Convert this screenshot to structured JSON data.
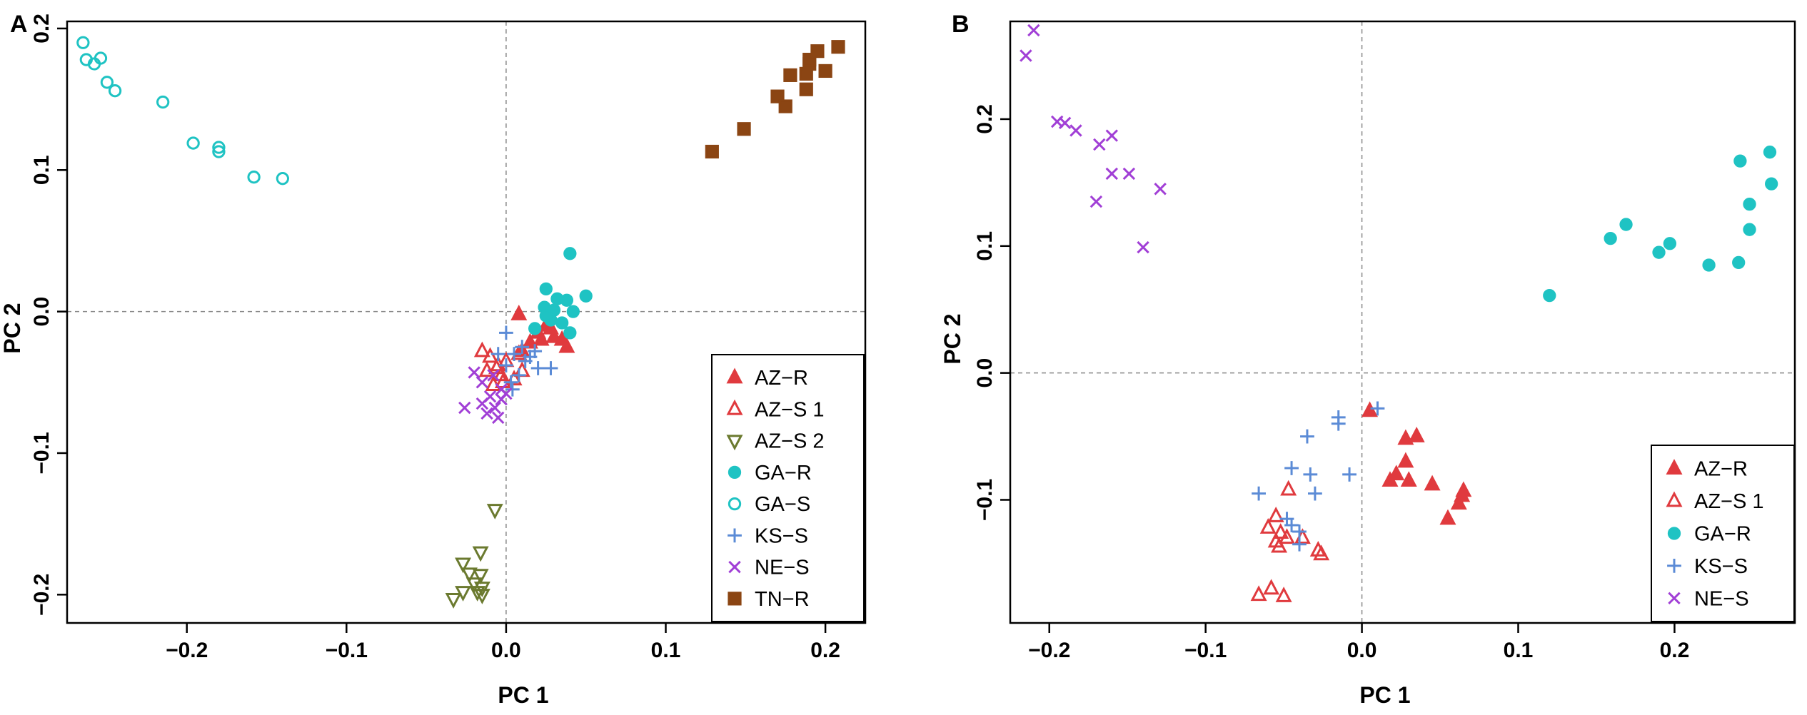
{
  "chart_data": [
    {
      "panel_label": "A",
      "type": "scatter",
      "xlabel": "PC 1",
      "ylabel": "PC 2",
      "xlim": [
        -0.275,
        0.225
      ],
      "ylim": [
        -0.22,
        0.205
      ],
      "xticks": [
        -0.2,
        -0.1,
        0.0,
        0.1,
        0.2
      ],
      "xtick_labels": [
        "−0.2",
        "−0.1",
        "0.0",
        "0.1",
        "0.2"
      ],
      "yticks": [
        -0.2,
        -0.1,
        0.0,
        0.1,
        0.2
      ],
      "ytick_labels": [
        "−0.2",
        "−0.1",
        "0.0",
        "0.1",
        "0.2"
      ],
      "reference_lines": {
        "x": 0,
        "y": 0
      },
      "legend_position": "bottom-right",
      "series": [
        {
          "name": "AZ−R",
          "marker": "triangle-up",
          "filled": true,
          "color": "#e03a3e",
          "points": [
            [
              0.008,
              -0.002
            ],
            [
              0.025,
              -0.01
            ],
            [
              0.03,
              -0.018
            ],
            [
              0.015,
              -0.022
            ],
            [
              0.035,
              -0.02
            ],
            [
              0.02,
              -0.015
            ],
            [
              0.038,
              -0.025
            ],
            [
              0.01,
              -0.028
            ],
            [
              0.028,
              -0.012
            ],
            [
              0.022,
              -0.02
            ]
          ]
        },
        {
          "name": "AZ−S 1",
          "marker": "triangle-up",
          "filled": false,
          "color": "#e03a3e",
          "points": [
            [
              -0.015,
              -0.028
            ],
            [
              -0.01,
              -0.032
            ],
            [
              -0.005,
              -0.038
            ],
            [
              -0.012,
              -0.042
            ],
            [
              -0.003,
              -0.045
            ],
            [
              0.0,
              -0.035
            ],
            [
              -0.008,
              -0.052
            ],
            [
              0.005,
              -0.048
            ],
            [
              0.01,
              -0.042
            ],
            [
              -0.002,
              -0.05
            ],
            [
              0.008,
              -0.03
            ],
            [
              -0.006,
              -0.04
            ]
          ]
        },
        {
          "name": "AZ−S 2",
          "marker": "triangle-down",
          "filled": false,
          "color": "#6b7a2f",
          "points": [
            [
              -0.007,
              -0.14
            ],
            [
              -0.016,
              -0.17
            ],
            [
              -0.027,
              -0.178
            ],
            [
              -0.023,
              -0.185
            ],
            [
              -0.016,
              -0.186
            ],
            [
              -0.02,
              -0.192
            ],
            [
              -0.015,
              -0.195
            ],
            [
              -0.018,
              -0.198
            ],
            [
              -0.015,
              -0.2
            ],
            [
              -0.027,
              -0.198
            ],
            [
              -0.033,
              -0.203
            ]
          ]
        },
        {
          "name": "GA−R",
          "marker": "circle",
          "filled": true,
          "color": "#1fc3c3",
          "points": [
            [
              0.04,
              0.041
            ],
            [
              0.025,
              0.016
            ],
            [
              0.05,
              0.011
            ],
            [
              0.032,
              0.009
            ],
            [
              0.038,
              0.008
            ],
            [
              0.024,
              0.003
            ],
            [
              0.03,
              0.001
            ],
            [
              0.042,
              0.0
            ],
            [
              0.028,
              -0.006
            ],
            [
              0.035,
              -0.008
            ],
            [
              0.04,
              -0.015
            ],
            [
              0.018,
              -0.012
            ],
            [
              0.025,
              -0.003
            ]
          ]
        },
        {
          "name": "GA−S",
          "marker": "circle",
          "filled": false,
          "color": "#1fc3c3",
          "points": [
            [
              -0.265,
              0.19
            ],
            [
              -0.263,
              0.178
            ],
            [
              -0.258,
              0.175
            ],
            [
              -0.254,
              0.179
            ],
            [
              -0.25,
              0.162
            ],
            [
              -0.245,
              0.156
            ],
            [
              -0.215,
              0.148
            ],
            [
              -0.196,
              0.119
            ],
            [
              -0.18,
              0.116
            ],
            [
              -0.18,
              0.113
            ],
            [
              -0.158,
              0.095
            ],
            [
              -0.14,
              0.094
            ]
          ]
        },
        {
          "name": "KS−S",
          "marker": "plus",
          "filled": false,
          "color": "#5b8bd6",
          "points": [
            [
              0.0,
              -0.015
            ],
            [
              0.01,
              -0.025
            ],
            [
              0.012,
              -0.035
            ],
            [
              0.005,
              -0.03
            ],
            [
              0.018,
              -0.028
            ],
            [
              0.02,
              -0.04
            ],
            [
              0.028,
              -0.04
            ],
            [
              0.008,
              -0.045
            ],
            [
              0.003,
              -0.05
            ],
            [
              0.0,
              -0.038
            ],
            [
              0.015,
              -0.032
            ],
            [
              -0.005,
              -0.03
            ],
            [
              0.004,
              -0.055
            ]
          ]
        },
        {
          "name": "NE−S",
          "marker": "x",
          "filled": false,
          "color": "#a13fd6",
          "points": [
            [
              -0.026,
              -0.068
            ],
            [
              -0.02,
              -0.043
            ],
            [
              -0.015,
              -0.065
            ],
            [
              -0.01,
              -0.06
            ],
            [
              -0.012,
              -0.072
            ],
            [
              -0.007,
              -0.068
            ],
            [
              -0.005,
              -0.075
            ],
            [
              -0.003,
              -0.062
            ],
            [
              0.0,
              -0.058
            ],
            [
              -0.015,
              -0.05
            ],
            [
              -0.008,
              -0.045
            ],
            [
              -0.003,
              -0.055
            ]
          ]
        },
        {
          "name": "TN−R",
          "marker": "square",
          "filled": true,
          "color": "#8b4513",
          "points": [
            [
              0.129,
              0.113
            ],
            [
              0.149,
              0.129
            ],
            [
              0.17,
              0.152
            ],
            [
              0.175,
              0.145
            ],
            [
              0.178,
              0.167
            ],
            [
              0.188,
              0.157
            ],
            [
              0.188,
              0.168
            ],
            [
              0.19,
              0.175
            ],
            [
              0.19,
              0.178
            ],
            [
              0.195,
              0.184
            ],
            [
              0.2,
              0.17
            ],
            [
              0.208,
              0.187
            ]
          ]
        }
      ]
    },
    {
      "panel_label": "B",
      "type": "scatter",
      "xlabel": "PC 1",
      "ylabel": "PC 2",
      "xlim": [
        -0.225,
        0.277
      ],
      "ylim": [
        -0.197,
        0.277
      ],
      "xticks": [
        -0.2,
        -0.1,
        0.0,
        0.1,
        0.2
      ],
      "xtick_labels": [
        "−0.2",
        "−0.1",
        "0.0",
        "0.1",
        "0.2"
      ],
      "yticks": [
        -0.1,
        0.0,
        0.1,
        0.2
      ],
      "ytick_labels": [
        "−0.1",
        "0.0",
        "0.1",
        "0.2"
      ],
      "reference_lines": {
        "x": 0,
        "y": 0
      },
      "legend_position": "bottom-right",
      "series": [
        {
          "name": "AZ−R",
          "marker": "triangle-up",
          "filled": true,
          "color": "#e03a3e",
          "points": [
            [
              0.005,
              -0.03
            ],
            [
              0.028,
              -0.052
            ],
            [
              0.035,
              -0.05
            ],
            [
              0.028,
              -0.07
            ],
            [
              0.022,
              -0.08
            ],
            [
              0.018,
              -0.085
            ],
            [
              0.03,
              -0.085
            ],
            [
              0.045,
              -0.088
            ],
            [
              0.065,
              -0.093
            ],
            [
              0.064,
              -0.097
            ],
            [
              0.062,
              -0.103
            ],
            [
              0.055,
              -0.115
            ]
          ]
        },
        {
          "name": "AZ−S 1",
          "marker": "triangle-up",
          "filled": false,
          "color": "#e03a3e",
          "points": [
            [
              -0.047,
              -0.092
            ],
            [
              -0.055,
              -0.113
            ],
            [
              -0.06,
              -0.122
            ],
            [
              -0.052,
              -0.126
            ],
            [
              -0.048,
              -0.13
            ],
            [
              -0.055,
              -0.133
            ],
            [
              -0.038,
              -0.13
            ],
            [
              -0.053,
              -0.137
            ],
            [
              -0.028,
              -0.14
            ],
            [
              -0.026,
              -0.143
            ],
            [
              -0.066,
              -0.175
            ],
            [
              -0.058,
              -0.17
            ],
            [
              -0.05,
              -0.176
            ]
          ]
        },
        {
          "name": "GA−R",
          "marker": "circle",
          "filled": true,
          "color": "#1fc3c3",
          "points": [
            [
              0.12,
              0.061
            ],
            [
              0.159,
              0.106
            ],
            [
              0.169,
              0.117
            ],
            [
              0.19,
              0.095
            ],
            [
              0.197,
              0.102
            ],
            [
              0.222,
              0.085
            ],
            [
              0.241,
              0.087
            ],
            [
              0.242,
              0.167
            ],
            [
              0.248,
              0.113
            ],
            [
              0.248,
              0.133
            ],
            [
              0.261,
              0.174
            ],
            [
              0.262,
              0.149
            ]
          ]
        },
        {
          "name": "KS−S",
          "marker": "plus",
          "filled": false,
          "color": "#5b8bd6",
          "points": [
            [
              0.01,
              -0.028
            ],
            [
              -0.015,
              -0.035
            ],
            [
              -0.015,
              -0.04
            ],
            [
              -0.035,
              -0.05
            ],
            [
              -0.045,
              -0.075
            ],
            [
              -0.033,
              -0.08
            ],
            [
              -0.008,
              -0.08
            ],
            [
              -0.066,
              -0.095
            ],
            [
              -0.03,
              -0.095
            ],
            [
              -0.048,
              -0.115
            ],
            [
              -0.045,
              -0.12
            ],
            [
              -0.04,
              -0.125
            ],
            [
              -0.04,
              -0.135
            ]
          ]
        },
        {
          "name": "NE−S",
          "marker": "x",
          "filled": false,
          "color": "#a13fd6",
          "points": [
            [
              -0.21,
              0.27
            ],
            [
              -0.215,
              0.25
            ],
            [
              -0.195,
              0.198
            ],
            [
              -0.19,
              0.197
            ],
            [
              -0.183,
              0.191
            ],
            [
              -0.168,
              0.18
            ],
            [
              -0.16,
              0.187
            ],
            [
              -0.16,
              0.157
            ],
            [
              -0.149,
              0.157
            ],
            [
              -0.17,
              0.135
            ],
            [
              -0.129,
              0.145
            ],
            [
              -0.14,
              0.099
            ]
          ]
        }
      ]
    }
  ]
}
